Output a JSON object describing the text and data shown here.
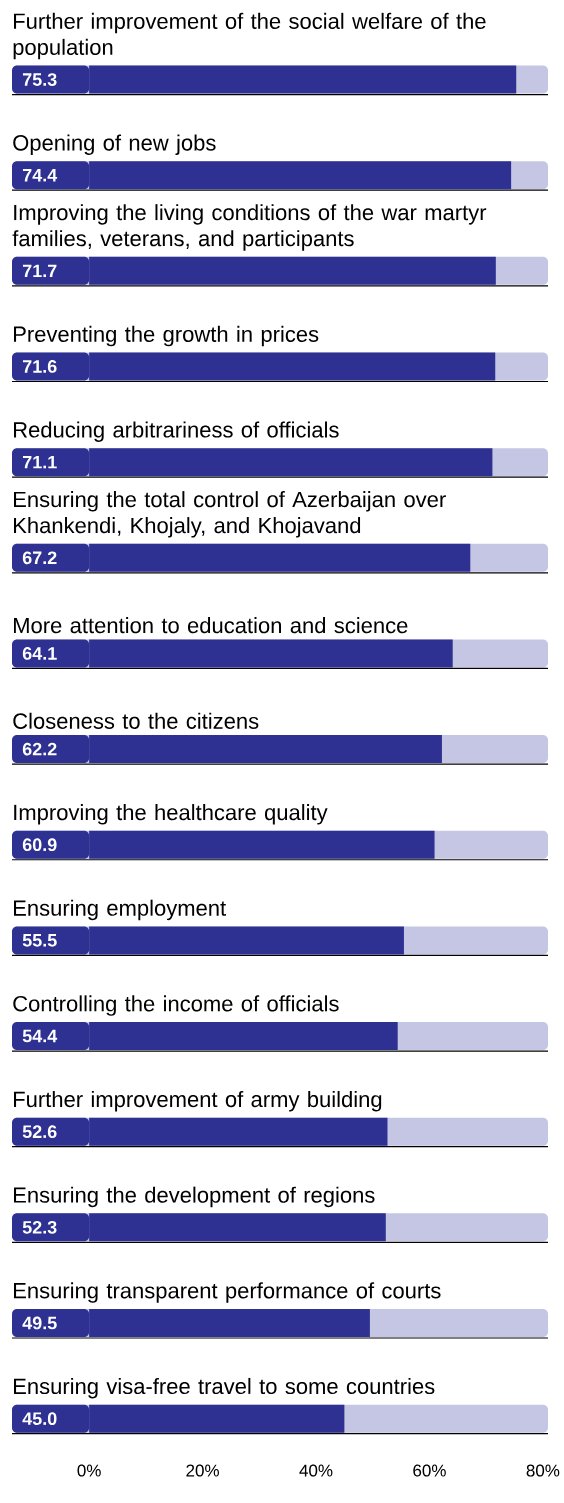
{
  "chart_data": {
    "type": "bar",
    "orientation": "horizontal",
    "categories": [
      "Further improvement of the social welfare of the population",
      "Opening of new jobs",
      "Improving the living conditions of the war martyr families, veterans, and participants",
      "Preventing the growth in prices",
      "Reducing arbitrariness of officials",
      "Ensuring the total control of Azerbaijan over Khankendi, Khojaly, and Khojavand",
      "More attention to education and science",
      "Closeness to the citizens",
      "Improving the healthcare quality",
      "Ensuring employment",
      "Controlling the income of officials",
      "Further improvement of army building",
      "Ensuring the development of regions",
      "Ensuring transparent performance of courts",
      "Ensuring visa-free travel to some countries"
    ],
    "values": [
      75.3,
      74.4,
      71.7,
      71.6,
      71.1,
      67.2,
      64.1,
      62.2,
      60.9,
      55.5,
      54.4,
      52.6,
      52.3,
      49.5,
      45.0
    ],
    "value_labels": [
      "75.3",
      "74.4",
      "71.7",
      "71.6",
      "71.1",
      "67.2",
      "64.1",
      "62.2",
      "60.9",
      "55.5",
      "54.4",
      "52.6",
      "52.3",
      "49.5",
      "45.0"
    ],
    "color": "#2e3192",
    "xlim": [
      -13.6,
      80.9
    ],
    "xticks": [
      {
        "value": 0,
        "label": "0%"
      },
      {
        "value": 20,
        "label": "20%"
      },
      {
        "value": 40,
        "label": "40%"
      },
      {
        "value": 60,
        "label": "60%"
      },
      {
        "value": 80,
        "label": "80%"
      }
    ]
  }
}
